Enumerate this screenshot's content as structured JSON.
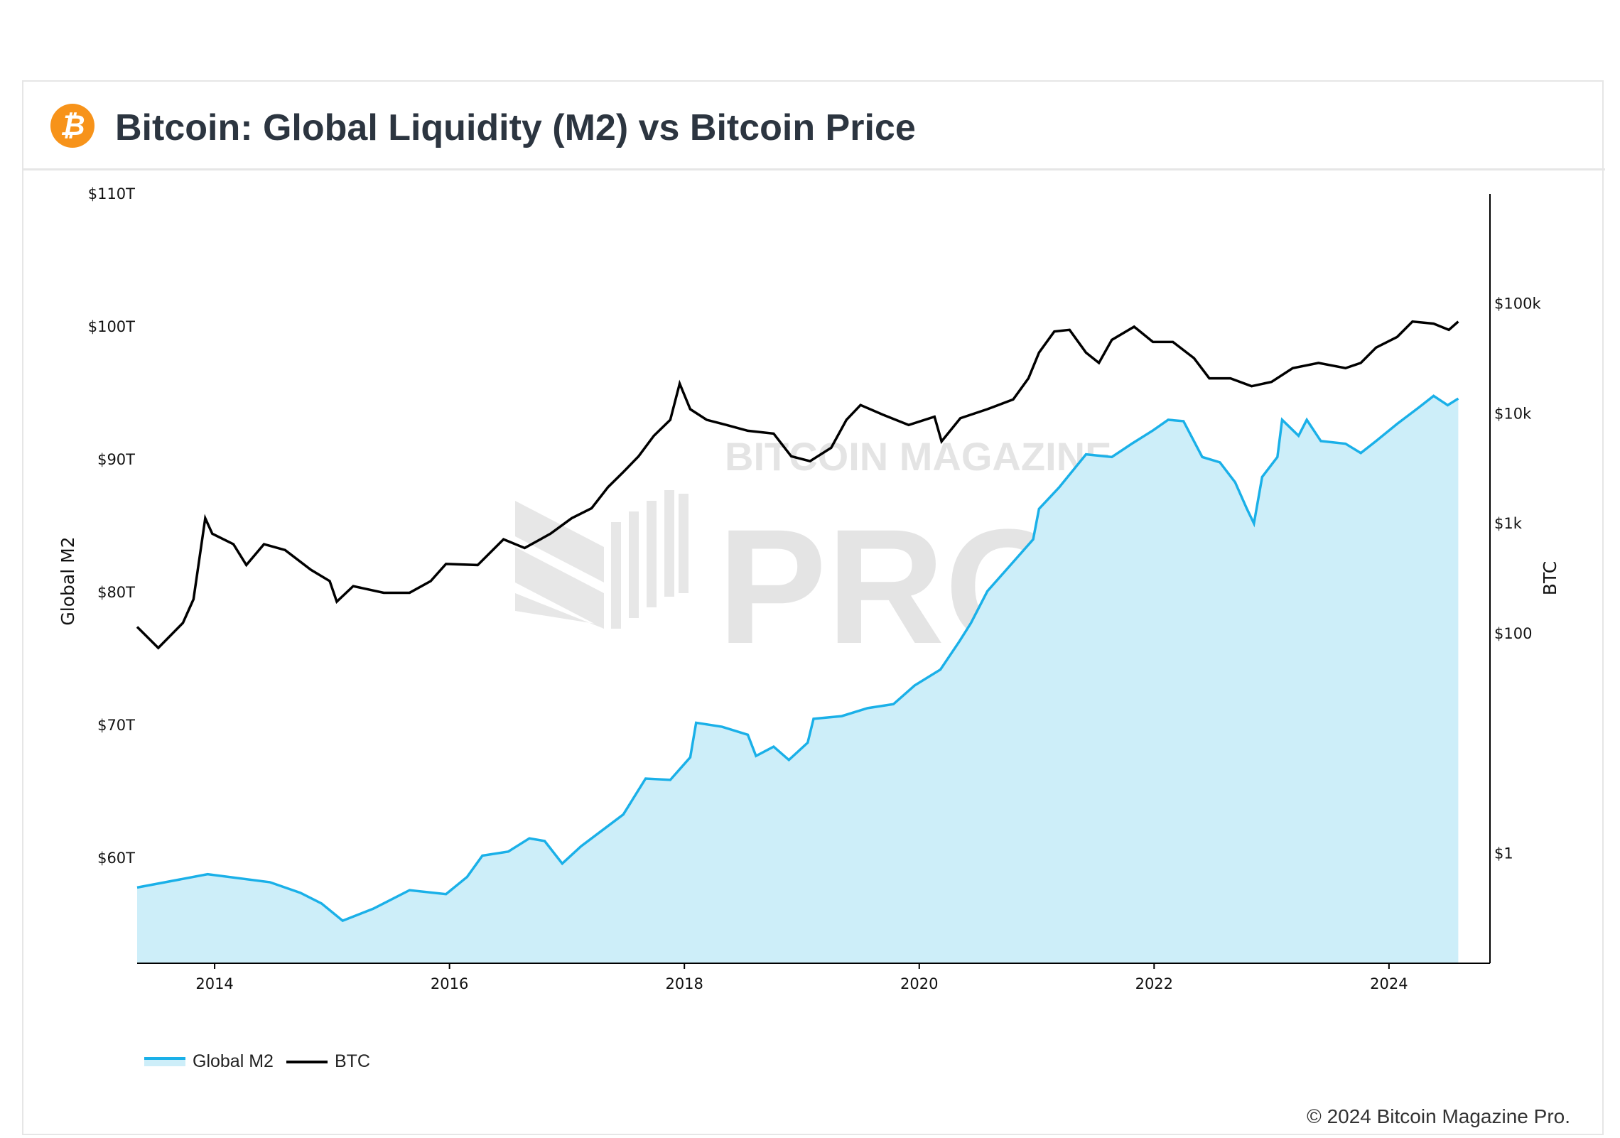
{
  "title": "Bitcoin: Global Liquidity (M2) vs Bitcoin Price",
  "logo_icon": "bitcoin-icon",
  "logo_glyph": "₿",
  "watermark": {
    "line1": "BITCOIN MAGAZINE",
    "line2": "PRO"
  },
  "copyright": "© 2024 Bitcoin Magazine Pro.",
  "colors": {
    "m2_line": "#1ab0e8",
    "m2_fill": "#cdeef9",
    "btc_line": "#000000",
    "brand": "#f7931a"
  },
  "chart_data": {
    "type": "line",
    "xlabel": "",
    "x_ticks": [
      "2014",
      "2016",
      "2018",
      "2020",
      "2022",
      "2024"
    ],
    "xlim": [
      2013.34,
      2024.86
    ],
    "left_axis": {
      "label": "Global M2",
      "ticks": [
        "$60T",
        "$70T",
        "$80T",
        "$90T",
        "$100T",
        "$110T"
      ],
      "tick_values": [
        60,
        70,
        80,
        90,
        100,
        110
      ],
      "range": [
        52.1,
        110
      ],
      "scale": "linear"
    },
    "right_axis": {
      "label": "BTC",
      "ticks": [
        "$1",
        "$100",
        "$1k",
        "$10k",
        "$100k"
      ],
      "tick_values": [
        1,
        100,
        1000,
        10000,
        100000
      ],
      "range": [
        0.1,
        1000000
      ],
      "scale": "log"
    },
    "legend": {
      "placement": "bottom-left",
      "entries": [
        "Global M2",
        "BTC"
      ]
    },
    "grid": false,
    "series": [
      {
        "name": "Global M2",
        "axis": "left",
        "type": "area",
        "x": [
          2013.34,
          2013.94,
          2014.47,
          2014.73,
          2014.91,
          2015.09,
          2015.35,
          2015.66,
          2015.97,
          2016.15,
          2016.28,
          2016.5,
          2016.68,
          2016.81,
          2016.96,
          2017.12,
          2017.3,
          2017.48,
          2017.67,
          2017.88,
          2018.05,
          2018.1,
          2018.32,
          2018.54,
          2018.61,
          2018.76,
          2018.89,
          2019.05,
          2019.1,
          2019.34,
          2019.56,
          2019.78,
          2019.96,
          2020.18,
          2020.34,
          2020.44,
          2020.58,
          2020.75,
          2020.97,
          2021.02,
          2021.19,
          2021.42,
          2021.64,
          2021.81,
          2021.99,
          2022.12,
          2022.25,
          2022.41,
          2022.56,
          2022.69,
          2022.79,
          2022.85,
          2022.92,
          2023.05,
          2023.09,
          2023.23,
          2023.3,
          2023.42,
          2023.63,
          2023.76,
          2023.89,
          2024.07,
          2024.25,
          2024.38,
          2024.5,
          2024.59
        ],
        "values": [
          57.8,
          58.8,
          58.2,
          57.4,
          56.6,
          55.3,
          56.2,
          57.6,
          57.3,
          58.6,
          60.2,
          60.5,
          61.5,
          61.3,
          59.6,
          60.9,
          62.1,
          63.3,
          66.0,
          65.9,
          67.6,
          70.2,
          69.9,
          69.3,
          67.7,
          68.4,
          67.4,
          68.7,
          70.5,
          70.7,
          71.3,
          71.6,
          73.0,
          74.2,
          76.3,
          77.7,
          80.1,
          81.8,
          84.0,
          86.3,
          87.9,
          90.4,
          90.2,
          91.2,
          92.2,
          93.0,
          92.9,
          90.2,
          89.8,
          88.3,
          86.3,
          85.2,
          88.7,
          90.2,
          93.0,
          91.8,
          93.0,
          91.4,
          91.2,
          90.5,
          91.4,
          92.7,
          93.9,
          94.8,
          94.1,
          94.6
        ]
      },
      {
        "name": "BTC",
        "axis": "right",
        "type": "line",
        "x": [
          2013.34,
          2013.52,
          2013.73,
          2013.82,
          2013.92,
          2013.98,
          2014.16,
          2014.27,
          2014.42,
          2014.6,
          2014.82,
          2014.98,
          2015.04,
          2015.18,
          2015.44,
          2015.66,
          2015.84,
          2015.97,
          2016.24,
          2016.46,
          2016.64,
          2016.86,
          2017.04,
          2017.21,
          2017.35,
          2017.48,
          2017.61,
          2017.74,
          2017.88,
          2017.96,
          2018.05,
          2018.19,
          2018.36,
          2018.54,
          2018.76,
          2018.91,
          2019.07,
          2019.25,
          2019.38,
          2019.5,
          2019.69,
          2019.91,
          2020.13,
          2020.19,
          2020.35,
          2020.58,
          2020.8,
          2020.93,
          2021.02,
          2021.15,
          2021.28,
          2021.42,
          2021.53,
          2021.64,
          2021.83,
          2021.99,
          2022.16,
          2022.34,
          2022.47,
          2022.65,
          2022.83,
          2023.0,
          2023.18,
          2023.4,
          2023.63,
          2023.76,
          2023.89,
          2024.07,
          2024.2,
          2024.38,
          2024.51,
          2024.59
        ],
        "values": [
          115,
          74,
          125,
          205,
          1120,
          810,
          650,
          420,
          650,
          575,
          380,
          300,
          195,
          270,
          235,
          235,
          300,
          430,
          420,
          720,
          600,
          810,
          1120,
          1380,
          2150,
          2950,
          4100,
          6300,
          8800,
          18800,
          11000,
          8800,
          7900,
          7000,
          6600,
          4100,
          3700,
          4900,
          8800,
          12000,
          9800,
          7900,
          9400,
          5600,
          9100,
          11000,
          13500,
          21000,
          36000,
          56000,
          58000,
          36000,
          29000,
          47000,
          62000,
          45000,
          45000,
          32000,
          21000,
          21000,
          17800,
          19500,
          26000,
          29000,
          26000,
          29000,
          40000,
          50000,
          69000,
          66000,
          58000,
          69000
        ]
      }
    ]
  }
}
